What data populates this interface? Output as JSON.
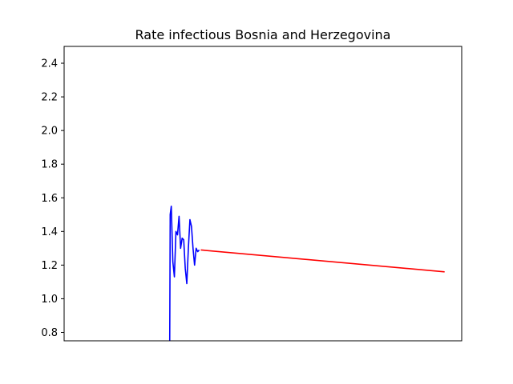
{
  "chart_data": {
    "type": "line",
    "title": "Rate infectious Bosnia and Herzegovina",
    "xlabel": "",
    "ylabel": "",
    "ylim": [
      0.75,
      2.5
    ],
    "yticks": [
      "0.8",
      "1.0",
      "1.2",
      "1.4",
      "1.6",
      "1.8",
      "2.0",
      "2.2",
      "2.4"
    ],
    "x_ticks_shown": false,
    "grid": false,
    "series": [
      {
        "color": "#0000ff",
        "x": [
          0.0,
          0.3,
          1.0,
          2.0,
          3.0,
          4.0,
          5.0,
          6.0,
          7.0,
          8.0,
          9.0,
          10.0,
          11.0,
          12.0,
          13.0,
          14.0,
          15.0,
          16.0,
          17.0,
          18.0,
          19.0
        ],
        "y": [
          0.75,
          1.5,
          1.55,
          1.22,
          1.13,
          1.4,
          1.38,
          1.49,
          1.3,
          1.36,
          1.35,
          1.18,
          1.09,
          1.3,
          1.47,
          1.43,
          1.3,
          1.2,
          1.3,
          1.28,
          1.29
        ]
      },
      {
        "color": "#ff0000",
        "x": [
          20.0,
          177.0
        ],
        "y": [
          1.29,
          1.16
        ]
      }
    ],
    "xlim": [
      -68.0,
      188.0
    ]
  }
}
